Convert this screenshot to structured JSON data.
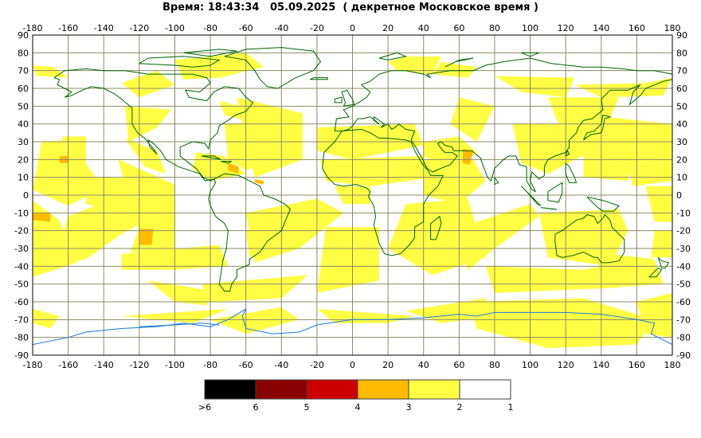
{
  "title": {
    "label": "Время:",
    "time": "18:43:34",
    "date": "05.09.2025",
    "zone": "( декретное Московское время )"
  },
  "axes": {
    "lon_ticks": [
      "-180",
      "-160",
      "-140",
      "-120",
      "-100",
      "-80",
      "-60",
      "-40",
      "-20",
      "0",
      "20",
      "40",
      "60",
      "80",
      "100",
      "120",
      "140",
      "160",
      "180"
    ],
    "lat_ticks": [
      "90",
      "80",
      "70",
      "60",
      "50",
      "40",
      "30",
      "20",
      "10",
      "0",
      "-10",
      "-20",
      "-30",
      "-40",
      "-50",
      "-60",
      "-70",
      "-80",
      "-90"
    ],
    "lon_range": [
      -180,
      180
    ],
    "lat_range": [
      -90,
      90
    ],
    "grid": true
  },
  "colors": {
    "grid": "#8c8c64",
    "coast": "#006400",
    "antarctic_coast": "#1e78dc",
    "level_2_3": "#ffff44",
    "level_3_4": "#ffbb00",
    "level_4_5": "#cc0000",
    "level_5_6": "#880000",
    "level_gt6": "#000000",
    "level_1_2": "#ffffff"
  },
  "legend": {
    "labels": [
      ">6",
      "6",
      "5",
      "4",
      "3",
      "2",
      "1"
    ],
    "colors": [
      "#000000",
      "#880000",
      "#cc0000",
      "#ffbb00",
      "#ffff44",
      "#ffffff"
    ]
  }
}
